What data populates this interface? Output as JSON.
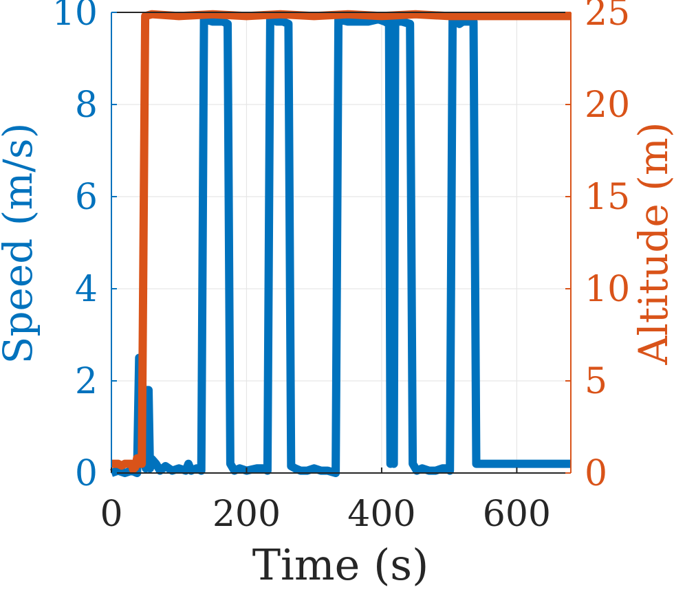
{
  "chart_data": {
    "type": "line",
    "xlabel": "Time (s)",
    "ylabel_left": "Speed (m/s)",
    "ylabel_right": "Altitude (m)",
    "xlim": [
      0,
      680
    ],
    "ylim_left": [
      0,
      10
    ],
    "ylim_right": [
      0,
      25
    ],
    "xticks": [
      0,
      200,
      400,
      600
    ],
    "yticks_left": [
      0,
      2,
      4,
      6,
      8,
      10
    ],
    "yticks_right": [
      0,
      5,
      10,
      15,
      20,
      25
    ],
    "xtick_labels": [
      "0",
      "200",
      "400",
      "600"
    ],
    "ytick_labels_left": [
      "0",
      "2",
      "4",
      "6",
      "8",
      "10"
    ],
    "ytick_labels_right": [
      "0",
      "5",
      "10",
      "15",
      "20",
      "25"
    ],
    "grid": true,
    "colors": {
      "speed": "#0072BD",
      "altitude": "#D95319",
      "axis": "#262626",
      "grid": "#e6e6e6"
    },
    "series": [
      {
        "axis": "left",
        "color": "#0072BD",
        "points": [
          [
            0,
            0.0
          ],
          [
            10,
            0.05
          ],
          [
            20,
            0.0
          ],
          [
            30,
            0.05
          ],
          [
            38,
            0.0
          ],
          [
            41,
            2.5
          ],
          [
            45,
            2.4
          ],
          [
            49,
            0.2
          ],
          [
            51,
            0.1
          ],
          [
            53,
            1.8
          ],
          [
            55,
            1.8
          ],
          [
            57,
            0.1
          ],
          [
            60,
            0.3
          ],
          [
            66,
            0.2
          ],
          [
            72,
            0.05
          ],
          [
            80,
            0.15
          ],
          [
            90,
            0.05
          ],
          [
            100,
            0.1
          ],
          [
            110,
            0.05
          ],
          [
            114,
            0.2
          ],
          [
            118,
            0.05
          ],
          [
            126,
            0.1
          ],
          [
            133,
            0.05
          ],
          [
            137,
            9.85
          ],
          [
            150,
            9.8
          ],
          [
            158,
            9.8
          ],
          [
            165,
            9.8
          ],
          [
            172,
            9.75
          ],
          [
            176,
            0.2
          ],
          [
            182,
            0.05
          ],
          [
            190,
            0.1
          ],
          [
            200,
            0.05
          ],
          [
            215,
            0.1
          ],
          [
            224,
            0.1
          ],
          [
            231,
            0.05
          ],
          [
            235,
            9.85
          ],
          [
            245,
            9.8
          ],
          [
            254,
            9.8
          ],
          [
            262,
            9.75
          ],
          [
            266,
            0.15
          ],
          [
            272,
            0.1
          ],
          [
            280,
            0.05
          ],
          [
            290,
            0.05
          ],
          [
            300,
            0.1
          ],
          [
            310,
            0.05
          ],
          [
            320,
            0.05
          ],
          [
            332,
            0.0
          ],
          [
            336,
            9.85
          ],
          [
            350,
            9.8
          ],
          [
            365,
            9.8
          ],
          [
            380,
            9.8
          ],
          [
            395,
            9.85
          ],
          [
            405,
            9.8
          ],
          [
            411,
            9.75
          ],
          [
            413,
            0.2
          ],
          [
            415,
            9.8
          ],
          [
            418,
            0.2
          ],
          [
            420,
            9.8
          ],
          [
            430,
            9.8
          ],
          [
            442,
            9.75
          ],
          [
            446,
            0.2
          ],
          [
            452,
            0.05
          ],
          [
            460,
            0.1
          ],
          [
            470,
            0.05
          ],
          [
            480,
            0.05
          ],
          [
            490,
            0.1
          ],
          [
            497,
            0.1
          ],
          [
            501,
            0.05
          ],
          [
            505,
            9.85
          ],
          [
            515,
            9.75
          ],
          [
            520,
            9.8
          ],
          [
            528,
            9.8
          ],
          [
            536,
            9.8
          ],
          [
            540,
            0.2
          ],
          [
            560,
            0.2
          ],
          [
            600,
            0.2
          ],
          [
            640,
            0.2
          ],
          [
            680,
            0.2
          ]
        ]
      },
      {
        "axis": "right",
        "color": "#D95319",
        "points": [
          [
            0,
            0.5
          ],
          [
            10,
            0.5
          ],
          [
            15,
            0.4
          ],
          [
            20,
            0.5
          ],
          [
            30,
            0.5
          ],
          [
            32,
            0.2
          ],
          [
            35,
            0.3
          ],
          [
            38,
            0.8
          ],
          [
            40,
            0.8
          ],
          [
            42,
            0.5
          ],
          [
            44,
            0.8
          ],
          [
            45,
            0.5
          ],
          [
            50,
            24.8
          ],
          [
            60,
            24.9
          ],
          [
            100,
            24.8
          ],
          [
            150,
            24.9
          ],
          [
            200,
            24.8
          ],
          [
            250,
            24.9
          ],
          [
            300,
            24.8
          ],
          [
            350,
            24.9
          ],
          [
            400,
            24.8
          ],
          [
            450,
            24.9
          ],
          [
            500,
            24.8
          ],
          [
            550,
            24.8
          ],
          [
            600,
            24.8
          ],
          [
            650,
            24.8
          ],
          [
            680,
            24.8
          ]
        ]
      }
    ]
  }
}
